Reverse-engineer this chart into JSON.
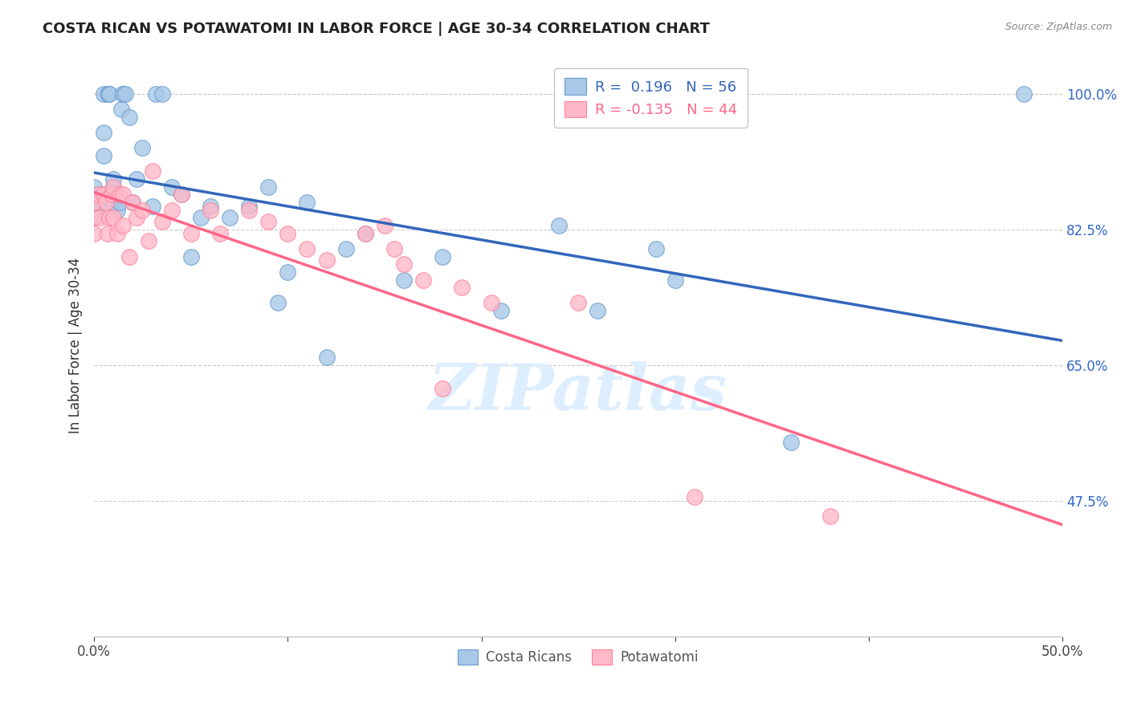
{
  "title": "COSTA RICAN VS POTAWATOMI IN LABOR FORCE | AGE 30-34 CORRELATION CHART",
  "source": "Source: ZipAtlas.com",
  "ylabel": "In Labor Force | Age 30-34",
  "xlim": [
    0.0,
    0.5
  ],
  "ylim": [
    0.3,
    1.05
  ],
  "ytick_positions": [
    0.475,
    0.65,
    0.825,
    1.0
  ],
  "ytick_labels": [
    "47.5%",
    "65.0%",
    "82.5%",
    "100.0%"
  ],
  "blue_R": 0.196,
  "blue_N": 56,
  "pink_R": -0.135,
  "pink_N": 44,
  "blue_fill_color": "#A8C8E8",
  "blue_edge_color": "#6699CC",
  "pink_fill_color": "#FFB8C8",
  "pink_edge_color": "#FF8099",
  "blue_line_color": "#3366BB",
  "pink_line_color": "#FF6688",
  "watermark": "ZIPatlas",
  "watermark_color": "#DDEEFF",
  "legend_label_blue": "Costa Ricans",
  "legend_label_pink": "Potawatomi",
  "blue_points_x": [
    0.0,
    0.0,
    0.0,
    0.0,
    0.0,
    0.0,
    0.002,
    0.003,
    0.004,
    0.005,
    0.005,
    0.005,
    0.007,
    0.008,
    0.008,
    0.009,
    0.01,
    0.01,
    0.01,
    0.011,
    0.012,
    0.013,
    0.014,
    0.015,
    0.015,
    0.016,
    0.018,
    0.02,
    0.022,
    0.025,
    0.03,
    0.032,
    0.035,
    0.04,
    0.045,
    0.05,
    0.055,
    0.06,
    0.07,
    0.08,
    0.09,
    0.095,
    0.1,
    0.11,
    0.12,
    0.13,
    0.14,
    0.16,
    0.18,
    0.21,
    0.24,
    0.26,
    0.29,
    0.3,
    0.36,
    0.48
  ],
  "blue_points_y": [
    0.85,
    0.87,
    0.88,
    0.855,
    0.84,
    0.86,
    0.86,
    0.85,
    0.87,
    0.92,
    0.95,
    1.0,
    1.0,
    1.0,
    1.0,
    0.87,
    0.88,
    0.86,
    0.89,
    0.87,
    0.85,
    0.86,
    0.98,
    1.0,
    1.0,
    1.0,
    0.97,
    0.86,
    0.89,
    0.93,
    0.855,
    1.0,
    1.0,
    0.88,
    0.87,
    0.79,
    0.84,
    0.855,
    0.84,
    0.855,
    0.88,
    0.73,
    0.77,
    0.86,
    0.66,
    0.8,
    0.82,
    0.76,
    0.79,
    0.72,
    0.83,
    0.72,
    0.8,
    0.76,
    0.55,
    1.0
  ],
  "pink_points_x": [
    0.0,
    0.0,
    0.0,
    0.002,
    0.003,
    0.005,
    0.006,
    0.007,
    0.008,
    0.009,
    0.01,
    0.01,
    0.012,
    0.013,
    0.015,
    0.015,
    0.018,
    0.02,
    0.022,
    0.025,
    0.028,
    0.03,
    0.035,
    0.04,
    0.045,
    0.05,
    0.06,
    0.065,
    0.08,
    0.09,
    0.1,
    0.11,
    0.12,
    0.14,
    0.15,
    0.155,
    0.16,
    0.17,
    0.18,
    0.19,
    0.205,
    0.25,
    0.31,
    0.38
  ],
  "pink_points_y": [
    0.86,
    0.84,
    0.82,
    0.87,
    0.84,
    0.87,
    0.86,
    0.82,
    0.84,
    0.87,
    0.84,
    0.88,
    0.82,
    0.87,
    0.83,
    0.87,
    0.79,
    0.86,
    0.84,
    0.85,
    0.81,
    0.9,
    0.835,
    0.85,
    0.87,
    0.82,
    0.85,
    0.82,
    0.85,
    0.835,
    0.82,
    0.8,
    0.785,
    0.82,
    0.83,
    0.8,
    0.78,
    0.76,
    0.62,
    0.75,
    0.73,
    0.73,
    0.48,
    0.455
  ]
}
